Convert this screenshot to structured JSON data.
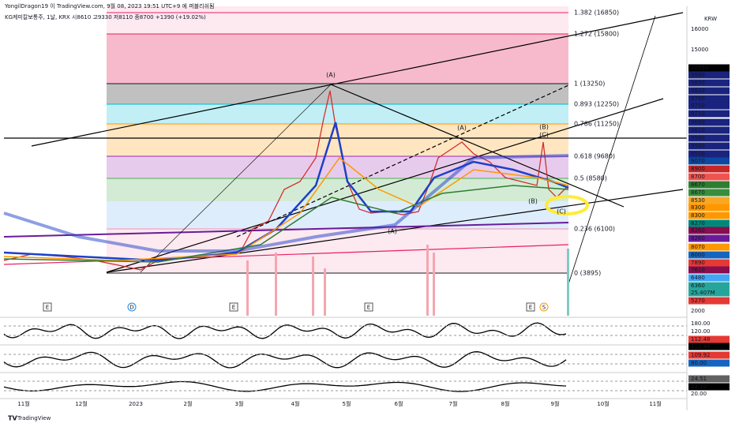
{
  "header": {
    "publisher": "YongilDragon19 이 TradingView.com, 9월 08, 2023 19:51 UTC+9 에 퍼블리쉬됨",
    "symbol_line": "KG케미칼보통주, 1날, KRX  시8610  고9330  저8110  종8700  +1390 (+19.02%)"
  },
  "fib_levels": [
    {
      "label": "1.382 (16850)",
      "color": "#e91e63"
    },
    {
      "label": "1.272 (15800)",
      "color": "#e91e63"
    },
    {
      "label": "1 (13250)",
      "color": "#131722"
    },
    {
      "label": "0.893 (12250)",
      "color": "#00bcd4"
    },
    {
      "label": "0.786 (11250)",
      "color": "#ff9800"
    },
    {
      "label": "0.618 (9680)",
      "color": "#9c27b0"
    },
    {
      "label": "0.5 (8580)",
      "color": "#4caf50"
    },
    {
      "label": "0.236 (6100)",
      "color": "#f48fb1"
    },
    {
      "label": "0 (3895)",
      "color": "#131722"
    }
  ],
  "price_axis": {
    "currency": "KRW",
    "labels": [
      {
        "text": "16000",
        "bg": ""
      },
      {
        "text": "15000",
        "bg": ""
      },
      {
        "text": "10550",
        "bg": "#000000"
      },
      {
        "text": "9880",
        "bg": "#1a237e"
      },
      {
        "text": "9850",
        "bg": "#1a237e"
      },
      {
        "text": "9820",
        "bg": "#1a237e"
      },
      {
        "text": "9790",
        "bg": "#1a237e"
      },
      {
        "text": "9750",
        "bg": "#1a237e"
      },
      {
        "text": "9710",
        "bg": "#1a237e"
      },
      {
        "text": "9660",
        "bg": "#1a237e"
      },
      {
        "text": "9610",
        "bg": "#1a237e"
      },
      {
        "text": "9590",
        "bg": "#1a237e"
      },
      {
        "text": "9580",
        "bg": "#1a237e"
      },
      {
        "text": "9550",
        "bg": "#1a237e"
      },
      {
        "text": "9070",
        "bg": "#0d47a1"
      },
      {
        "text": "8900",
        "bg": "#c62828"
      },
      {
        "text": "8700",
        "bg": "#ef5350"
      },
      {
        "text": "8670",
        "bg": "#2e7d32"
      },
      {
        "text": "8670",
        "bg": "#388e3c"
      },
      {
        "text": "8530",
        "bg": "#f9a825"
      },
      {
        "text": "8300",
        "bg": "#ff9800"
      },
      {
        "text": "8300",
        "bg": "#ff9800"
      },
      {
        "text": "8270",
        "bg": "#00897b"
      },
      {
        "text": "8260",
        "bg": "#880e4f"
      },
      {
        "text": "8260",
        "bg": "#6a1b9a"
      },
      {
        "text": "8070",
        "bg": "#ff9800"
      },
      {
        "text": "8000",
        "bg": "#1565c0"
      },
      {
        "text": "7890",
        "bg": "#e53935"
      },
      {
        "text": "7610",
        "bg": "#880e4f"
      },
      {
        "text": "6480",
        "bg": "#42a5f5"
      },
      {
        "text": "6360",
        "bg": "#26a69a"
      },
      {
        "text": "25.407M",
        "bg": "#26a69a"
      },
      {
        "text": "5270",
        "bg": "#e53935"
      },
      {
        "text": "2000",
        "bg": ""
      }
    ]
  },
  "indicator_axis": {
    "labels": [
      {
        "text": "180.00",
        "bg": ""
      },
      {
        "text": "120.00",
        "bg": ""
      },
      {
        "text": "112.48",
        "bg": "#e53935"
      },
      {
        "text": "112.48",
        "bg": "#000000"
      },
      {
        "text": "109.92",
        "bg": "#e53935"
      },
      {
        "text": "80.00",
        "bg": "#1565c0"
      },
      {
        "text": "24.51",
        "bg": "#616161"
      },
      {
        "text": "22.10",
        "bg": "#000000"
      },
      {
        "text": "20.00",
        "bg": ""
      }
    ]
  },
  "time_axis": [
    "11월",
    "12월",
    "2023",
    "2월",
    "3월",
    "4월",
    "5월",
    "6월",
    "7월",
    "8월",
    "9월",
    "10월",
    "11월"
  ],
  "waves": [
    {
      "label": "(A)",
      "color": "#131722"
    },
    {
      "label": "(A)",
      "color": "#1e88e5"
    },
    {
      "label": "(B)",
      "color": "#e53935"
    },
    {
      "label": "(C)",
      "color": "#1e88e5"
    },
    {
      "label": "(B)",
      "color": "#1e88e5"
    },
    {
      "label": "(C)",
      "color": "#e53935"
    },
    {
      "label": "(A)",
      "color": "#e53935"
    }
  ],
  "events": [
    "E",
    "D",
    "E",
    "E",
    "E",
    "S"
  ],
  "footer": {
    "brand": "TradingView"
  }
}
